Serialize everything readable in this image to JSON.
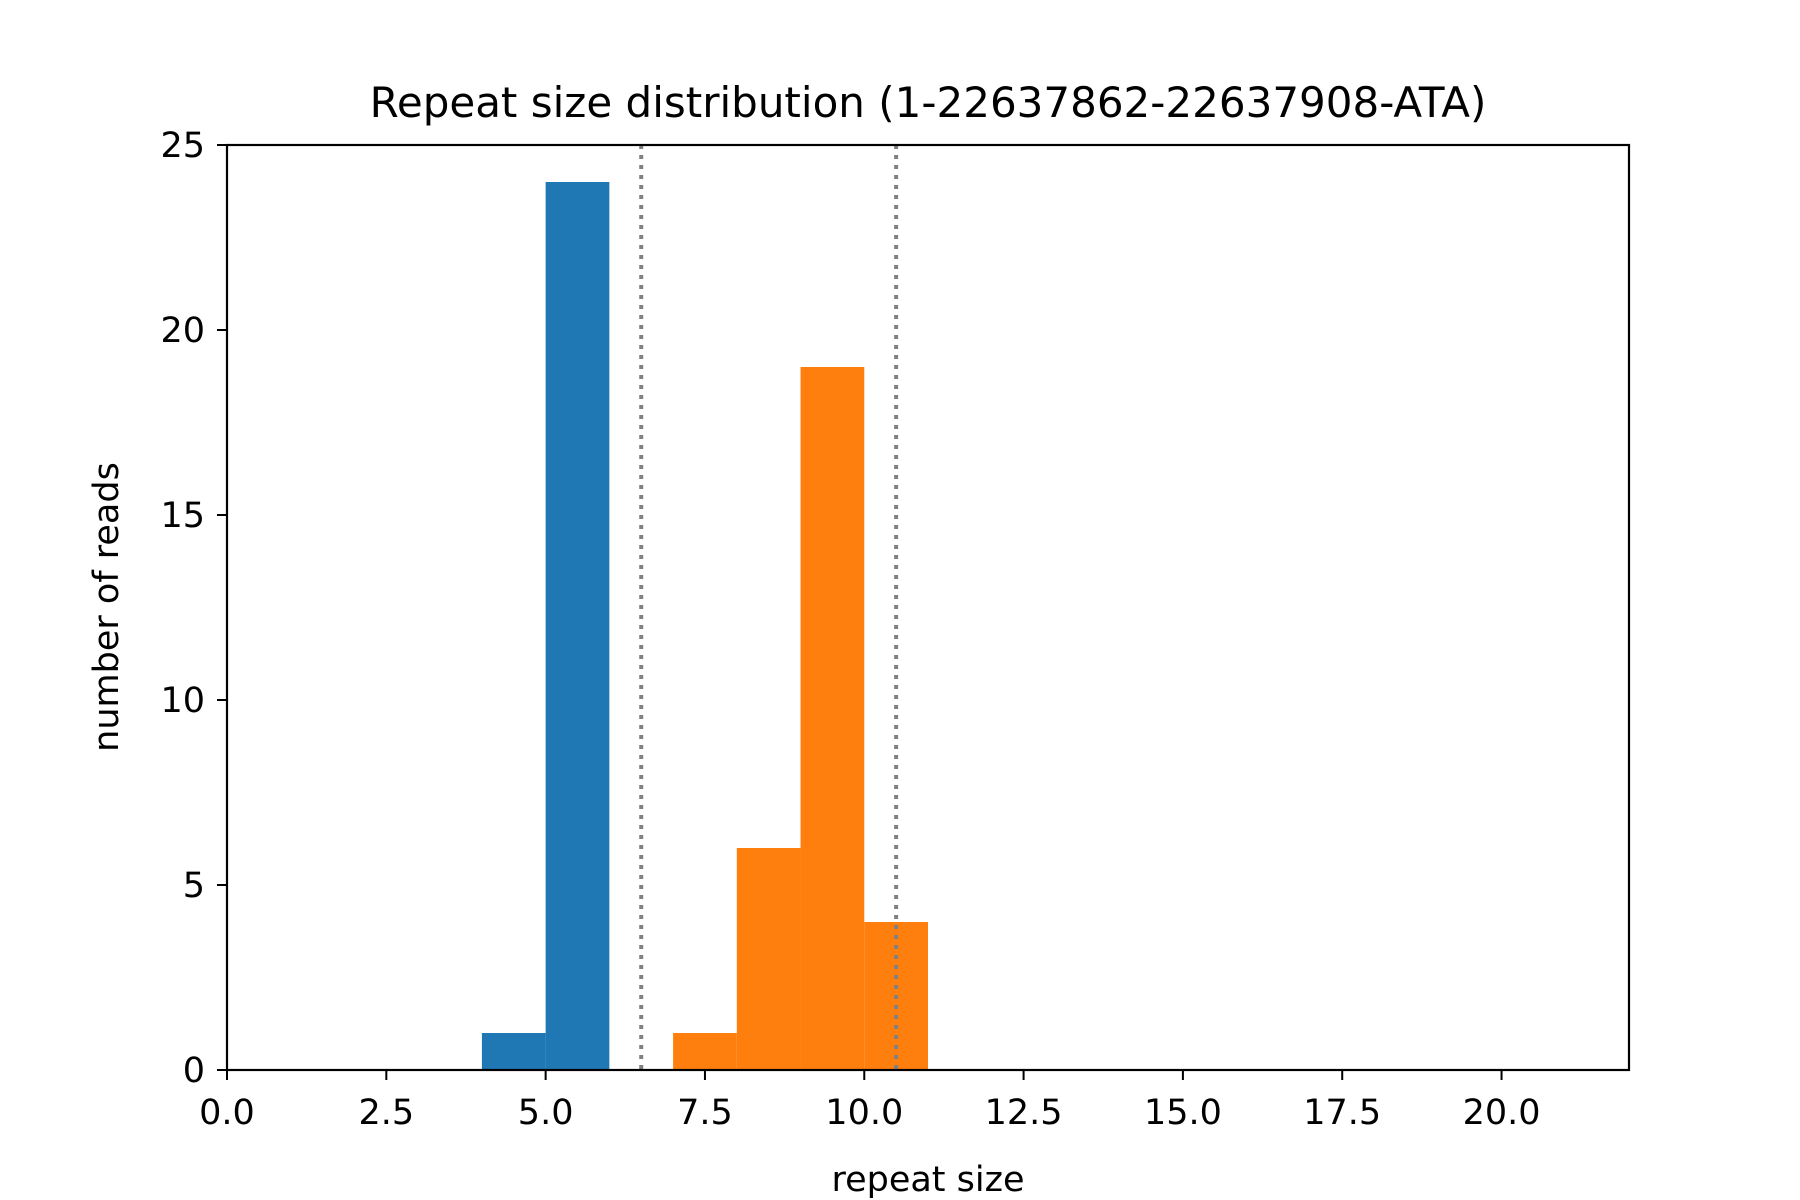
{
  "chart_data": {
    "type": "bar",
    "title": "Repeat size distribution (1-22637862-22637908-ATA)",
    "xlabel": "repeat size",
    "ylabel": "number of reads",
    "xlim": [
      0,
      22
    ],
    "ylim": [
      0,
      25
    ],
    "xticks": [
      "0.0",
      "2.5",
      "5.0",
      "7.5",
      "10.0",
      "12.5",
      "15.0",
      "17.5",
      "20.0"
    ],
    "yticks": [
      "0",
      "5",
      "10",
      "15",
      "20",
      "25"
    ],
    "grid": false,
    "series": [
      {
        "color": "#1f77b4",
        "bins": [
          {
            "x0": 4,
            "x1": 5,
            "value": 1
          },
          {
            "x0": 5,
            "x1": 6,
            "value": 24
          }
        ]
      },
      {
        "color": "#ff7f0e",
        "bins": [
          {
            "x0": 7,
            "x1": 8,
            "value": 1
          },
          {
            "x0": 8,
            "x1": 9,
            "value": 6
          },
          {
            "x0": 9,
            "x1": 10,
            "value": 19
          },
          {
            "x0": 10,
            "x1": 11,
            "value": 4
          }
        ]
      }
    ],
    "reference_lines": [
      {
        "x": 6.5,
        "style": "dotted",
        "color": "#808080"
      },
      {
        "x": 10.5,
        "style": "dotted",
        "color": "#808080"
      }
    ]
  }
}
